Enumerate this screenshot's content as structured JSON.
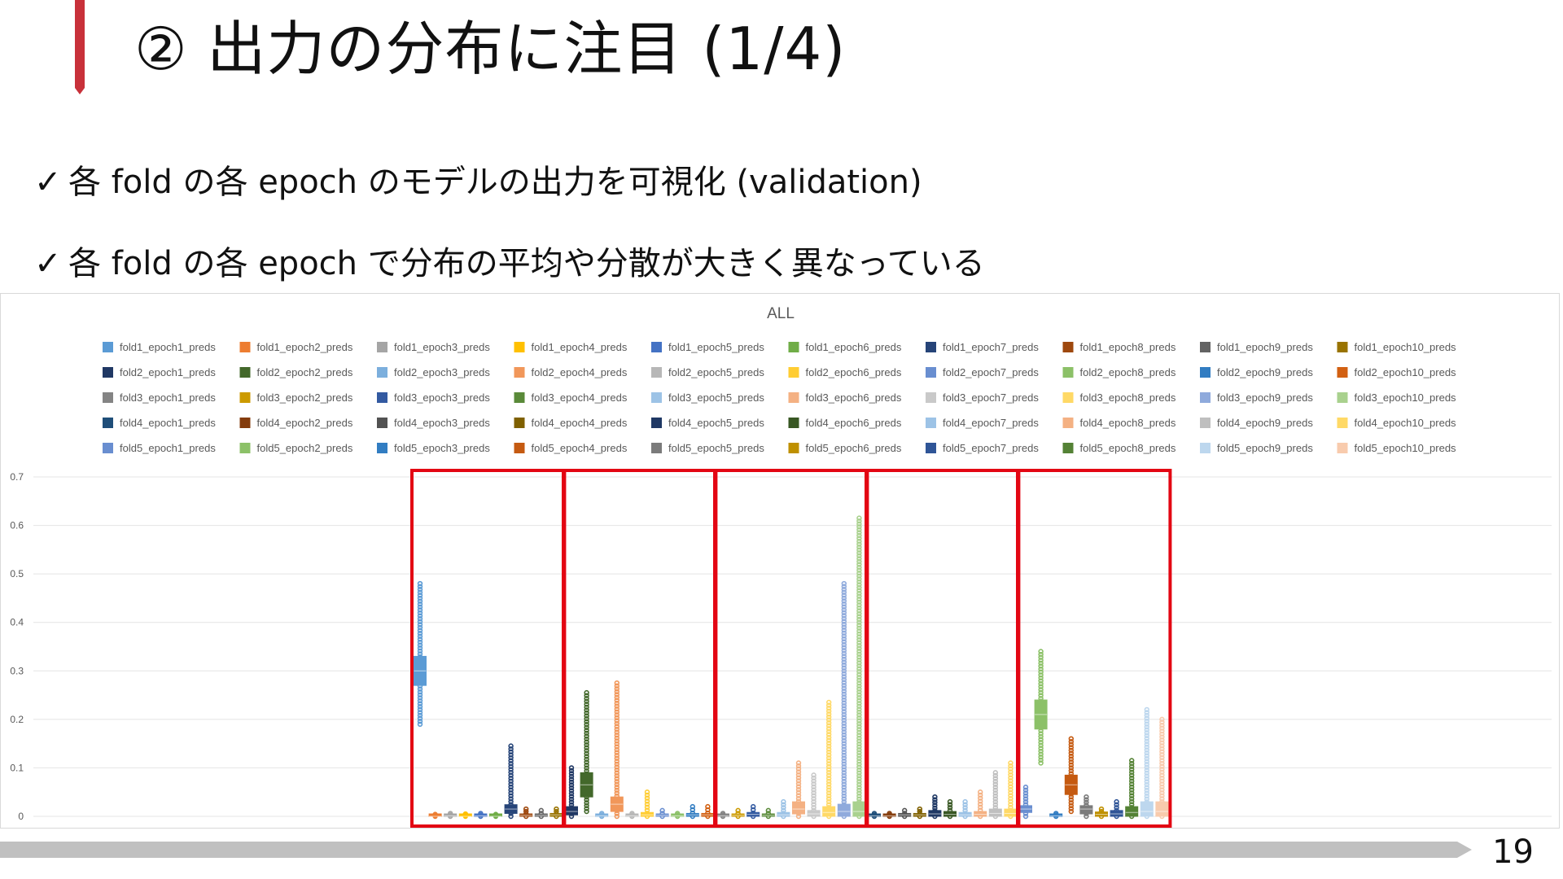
{
  "slide": {
    "title": "② 出力の分布に注目 (1/4)",
    "bullets": [
      {
        "mark": "✓",
        "text": "各 fold の各 epoch のモデルの出力を可視化 (validation)"
      },
      {
        "mark": "✓",
        "text": "各 fold の各 epoch で分布の平均や分散が大きく異なっている"
      }
    ],
    "page_number": "19"
  },
  "colors": {
    "accent": "#c8313a",
    "highlight_boxes": "#e30613",
    "progress_bar": "#c0c0c0",
    "gridline": "#e4e4e4"
  },
  "chart_data": {
    "type": "box",
    "title": "ALL",
    "xlabel": "",
    "ylabel": "",
    "ylim": [
      0,
      0.7
    ],
    "y_ticks": [
      "0",
      "0.1",
      "0.2",
      "0.3",
      "0.4",
      "0.5",
      "0.6",
      "0.7"
    ],
    "grid": true,
    "legend_position": "top",
    "highlight_groups": [
      "fold1",
      "fold2",
      "fold3",
      "fold4",
      "fold5"
    ],
    "series": [
      {
        "name": "fold1_epoch1_preds",
        "color": "#5b9bd5",
        "q1": 0.27,
        "median": 0.3,
        "q3": 0.33,
        "min": 0.19,
        "max": 0.48
      },
      {
        "name": "fold1_epoch2_preds",
        "color": "#ed7d31",
        "q1": 0.0,
        "median": 0.0,
        "q3": 0.002,
        "min": 0.0,
        "max": 0.004
      },
      {
        "name": "fold1_epoch3_preds",
        "color": "#a5a5a5",
        "q1": 0.0,
        "median": 0.001,
        "q3": 0.003,
        "min": 0.0,
        "max": 0.006
      },
      {
        "name": "fold1_epoch4_preds",
        "color": "#ffc000",
        "q1": 0.0,
        "median": 0.0,
        "q3": 0.002,
        "min": 0.0,
        "max": 0.005
      },
      {
        "name": "fold1_epoch5_preds",
        "color": "#4472c4",
        "q1": 0.0,
        "median": 0.001,
        "q3": 0.003,
        "min": 0.0,
        "max": 0.006
      },
      {
        "name": "fold1_epoch6_preds",
        "color": "#70ad47",
        "q1": 0.0,
        "median": 0.0,
        "q3": 0.002,
        "min": 0.0,
        "max": 0.004
      },
      {
        "name": "fold1_epoch7_preds",
        "color": "#264478",
        "q1": 0.006,
        "median": 0.015,
        "q3": 0.024,
        "min": 0.0,
        "max": 0.145
      },
      {
        "name": "fold1_epoch8_preds",
        "color": "#9e480e",
        "q1": 0.0,
        "median": 0.002,
        "q3": 0.005,
        "min": 0.0,
        "max": 0.015
      },
      {
        "name": "fold1_epoch9_preds",
        "color": "#636363",
        "q1": 0.0,
        "median": 0.002,
        "q3": 0.005,
        "min": 0.0,
        "max": 0.012
      },
      {
        "name": "fold1_epoch10_preds",
        "color": "#997300",
        "q1": 0.0,
        "median": 0.003,
        "q3": 0.006,
        "min": 0.0,
        "max": 0.015
      },
      {
        "name": "fold2_epoch1_preds",
        "color": "#203864",
        "q1": 0.003,
        "median": 0.01,
        "q3": 0.02,
        "min": 0.0,
        "max": 0.1
      },
      {
        "name": "fold2_epoch2_preds",
        "color": "#43682b",
        "q1": 0.04,
        "median": 0.065,
        "q3": 0.09,
        "min": 0.01,
        "max": 0.255
      },
      {
        "name": "fold2_epoch3_preds",
        "color": "#7cafdd",
        "q1": 0.0,
        "median": 0.001,
        "q3": 0.003,
        "min": 0.0,
        "max": 0.006
      },
      {
        "name": "fold2_epoch4_preds",
        "color": "#f1975a",
        "q1": 0.01,
        "median": 0.025,
        "q3": 0.04,
        "min": 0.0,
        "max": 0.275
      },
      {
        "name": "fold2_epoch5_preds",
        "color": "#b7b7b7",
        "q1": 0.0,
        "median": 0.001,
        "q3": 0.003,
        "min": 0.0,
        "max": 0.006
      },
      {
        "name": "fold2_epoch6_preds",
        "color": "#ffcd33",
        "q1": 0.0,
        "median": 0.003,
        "q3": 0.008,
        "min": 0.0,
        "max": 0.05
      },
      {
        "name": "fold2_epoch7_preds",
        "color": "#698ed0",
        "q1": 0.0,
        "median": 0.002,
        "q3": 0.005,
        "min": 0.0,
        "max": 0.012
      },
      {
        "name": "fold2_epoch8_preds",
        "color": "#8cc168",
        "q1": 0.0,
        "median": 0.001,
        "q3": 0.003,
        "min": 0.0,
        "max": 0.006
      },
      {
        "name": "fold2_epoch9_preds",
        "color": "#327dc2",
        "q1": 0.0,
        "median": 0.003,
        "q3": 0.006,
        "min": 0.0,
        "max": 0.02
      },
      {
        "name": "fold2_epoch10_preds",
        "color": "#d26012",
        "q1": 0.0,
        "median": 0.003,
        "q3": 0.006,
        "min": 0.0,
        "max": 0.02
      },
      {
        "name": "fold3_epoch1_preds",
        "color": "#848484",
        "q1": 0.0,
        "median": 0.001,
        "q3": 0.003,
        "min": 0.0,
        "max": 0.006
      },
      {
        "name": "fold3_epoch2_preds",
        "color": "#cc9a00",
        "q1": 0.0,
        "median": 0.002,
        "q3": 0.005,
        "min": 0.0,
        "max": 0.012
      },
      {
        "name": "fold3_epoch3_preds",
        "color": "#335aa1",
        "q1": 0.0,
        "median": 0.004,
        "q3": 0.008,
        "min": 0.0,
        "max": 0.02
      },
      {
        "name": "fold3_epoch4_preds",
        "color": "#5a8a39",
        "q1": 0.0,
        "median": 0.002,
        "q3": 0.005,
        "min": 0.0,
        "max": 0.012
      },
      {
        "name": "fold3_epoch5_preds",
        "color": "#9dc3e6",
        "q1": 0.0,
        "median": 0.003,
        "q3": 0.008,
        "min": 0.0,
        "max": 0.03
      },
      {
        "name": "fold3_epoch6_preds",
        "color": "#f4b183",
        "q1": 0.005,
        "median": 0.015,
        "q3": 0.03,
        "min": 0.0,
        "max": 0.11
      },
      {
        "name": "fold3_epoch7_preds",
        "color": "#c9c9c9",
        "q1": 0.0,
        "median": 0.005,
        "q3": 0.012,
        "min": 0.0,
        "max": 0.085
      },
      {
        "name": "fold3_epoch8_preds",
        "color": "#ffd966",
        "q1": 0.0,
        "median": 0.008,
        "q3": 0.02,
        "min": 0.0,
        "max": 0.235
      },
      {
        "name": "fold3_epoch9_preds",
        "color": "#8faadc",
        "q1": 0.0,
        "median": 0.01,
        "q3": 0.025,
        "min": 0.0,
        "max": 0.48
      },
      {
        "name": "fold3_epoch10_preds",
        "color": "#a9d18e",
        "q1": 0.0,
        "median": 0.01,
        "q3": 0.03,
        "min": 0.0,
        "max": 0.615
      },
      {
        "name": "fold4_epoch1_preds",
        "color": "#1f4e79",
        "q1": 0.0,
        "median": 0.001,
        "q3": 0.003,
        "min": 0.0,
        "max": 0.006
      },
      {
        "name": "fold4_epoch2_preds",
        "color": "#843c0c",
        "q1": 0.0,
        "median": 0.001,
        "q3": 0.003,
        "min": 0.0,
        "max": 0.006
      },
      {
        "name": "fold4_epoch3_preds",
        "color": "#525252",
        "q1": 0.0,
        "median": 0.003,
        "q3": 0.006,
        "min": 0.0,
        "max": 0.012
      },
      {
        "name": "fold4_epoch4_preds",
        "color": "#7f6000",
        "q1": 0.0,
        "median": 0.003,
        "q3": 0.006,
        "min": 0.0,
        "max": 0.015
      },
      {
        "name": "fold4_epoch5_preds",
        "color": "#1f3864",
        "q1": 0.0,
        "median": 0.005,
        "q3": 0.012,
        "min": 0.0,
        "max": 0.04
      },
      {
        "name": "fold4_epoch6_preds",
        "color": "#385723",
        "q1": 0.0,
        "median": 0.004,
        "q3": 0.01,
        "min": 0.0,
        "max": 0.03
      },
      {
        "name": "fold4_epoch7_preds",
        "color": "#9dc3e6",
        "q1": 0.0,
        "median": 0.003,
        "q3": 0.008,
        "min": 0.0,
        "max": 0.03
      },
      {
        "name": "fold4_epoch8_preds",
        "color": "#f4b183",
        "q1": 0.0,
        "median": 0.004,
        "q3": 0.01,
        "min": 0.0,
        "max": 0.05
      },
      {
        "name": "fold4_epoch9_preds",
        "color": "#bfbfbf",
        "q1": 0.0,
        "median": 0.006,
        "q3": 0.015,
        "min": 0.0,
        "max": 0.09
      },
      {
        "name": "fold4_epoch10_preds",
        "color": "#ffd966",
        "q1": 0.0,
        "median": 0.006,
        "q3": 0.015,
        "min": 0.0,
        "max": 0.11
      },
      {
        "name": "fold5_epoch1_preds",
        "color": "#698ed0",
        "q1": 0.008,
        "median": 0.015,
        "q3": 0.022,
        "min": 0.0,
        "max": 0.06
      },
      {
        "name": "fold5_epoch2_preds",
        "color": "#8cc168",
        "q1": 0.18,
        "median": 0.21,
        "q3": 0.24,
        "min": 0.11,
        "max": 0.34
      },
      {
        "name": "fold5_epoch3_preds",
        "color": "#327dc2",
        "q1": 0.0,
        "median": 0.001,
        "q3": 0.003,
        "min": 0.0,
        "max": 0.006
      },
      {
        "name": "fold5_epoch4_preds",
        "color": "#c55a11",
        "q1": 0.045,
        "median": 0.065,
        "q3": 0.085,
        "min": 0.01,
        "max": 0.16
      },
      {
        "name": "fold5_epoch5_preds",
        "color": "#7b7b7b",
        "q1": 0.005,
        "median": 0.015,
        "q3": 0.022,
        "min": 0.0,
        "max": 0.04
      },
      {
        "name": "fold5_epoch6_preds",
        "color": "#bf9000",
        "q1": 0.0,
        "median": 0.004,
        "q3": 0.009,
        "min": 0.0,
        "max": 0.015
      },
      {
        "name": "fold5_epoch7_preds",
        "color": "#2f5597",
        "q1": 0.0,
        "median": 0.005,
        "q3": 0.012,
        "min": 0.0,
        "max": 0.03
      },
      {
        "name": "fold5_epoch8_preds",
        "color": "#548235",
        "q1": 0.0,
        "median": 0.008,
        "q3": 0.02,
        "min": 0.0,
        "max": 0.115
      },
      {
        "name": "fold5_epoch9_preds",
        "color": "#bdd7ee",
        "q1": 0.0,
        "median": 0.01,
        "q3": 0.03,
        "min": 0.0,
        "max": 0.22
      },
      {
        "name": "fold5_epoch10_preds",
        "color": "#f8cbad",
        "q1": 0.0,
        "median": 0.01,
        "q3": 0.03,
        "min": 0.0,
        "max": 0.2
      }
    ]
  }
}
